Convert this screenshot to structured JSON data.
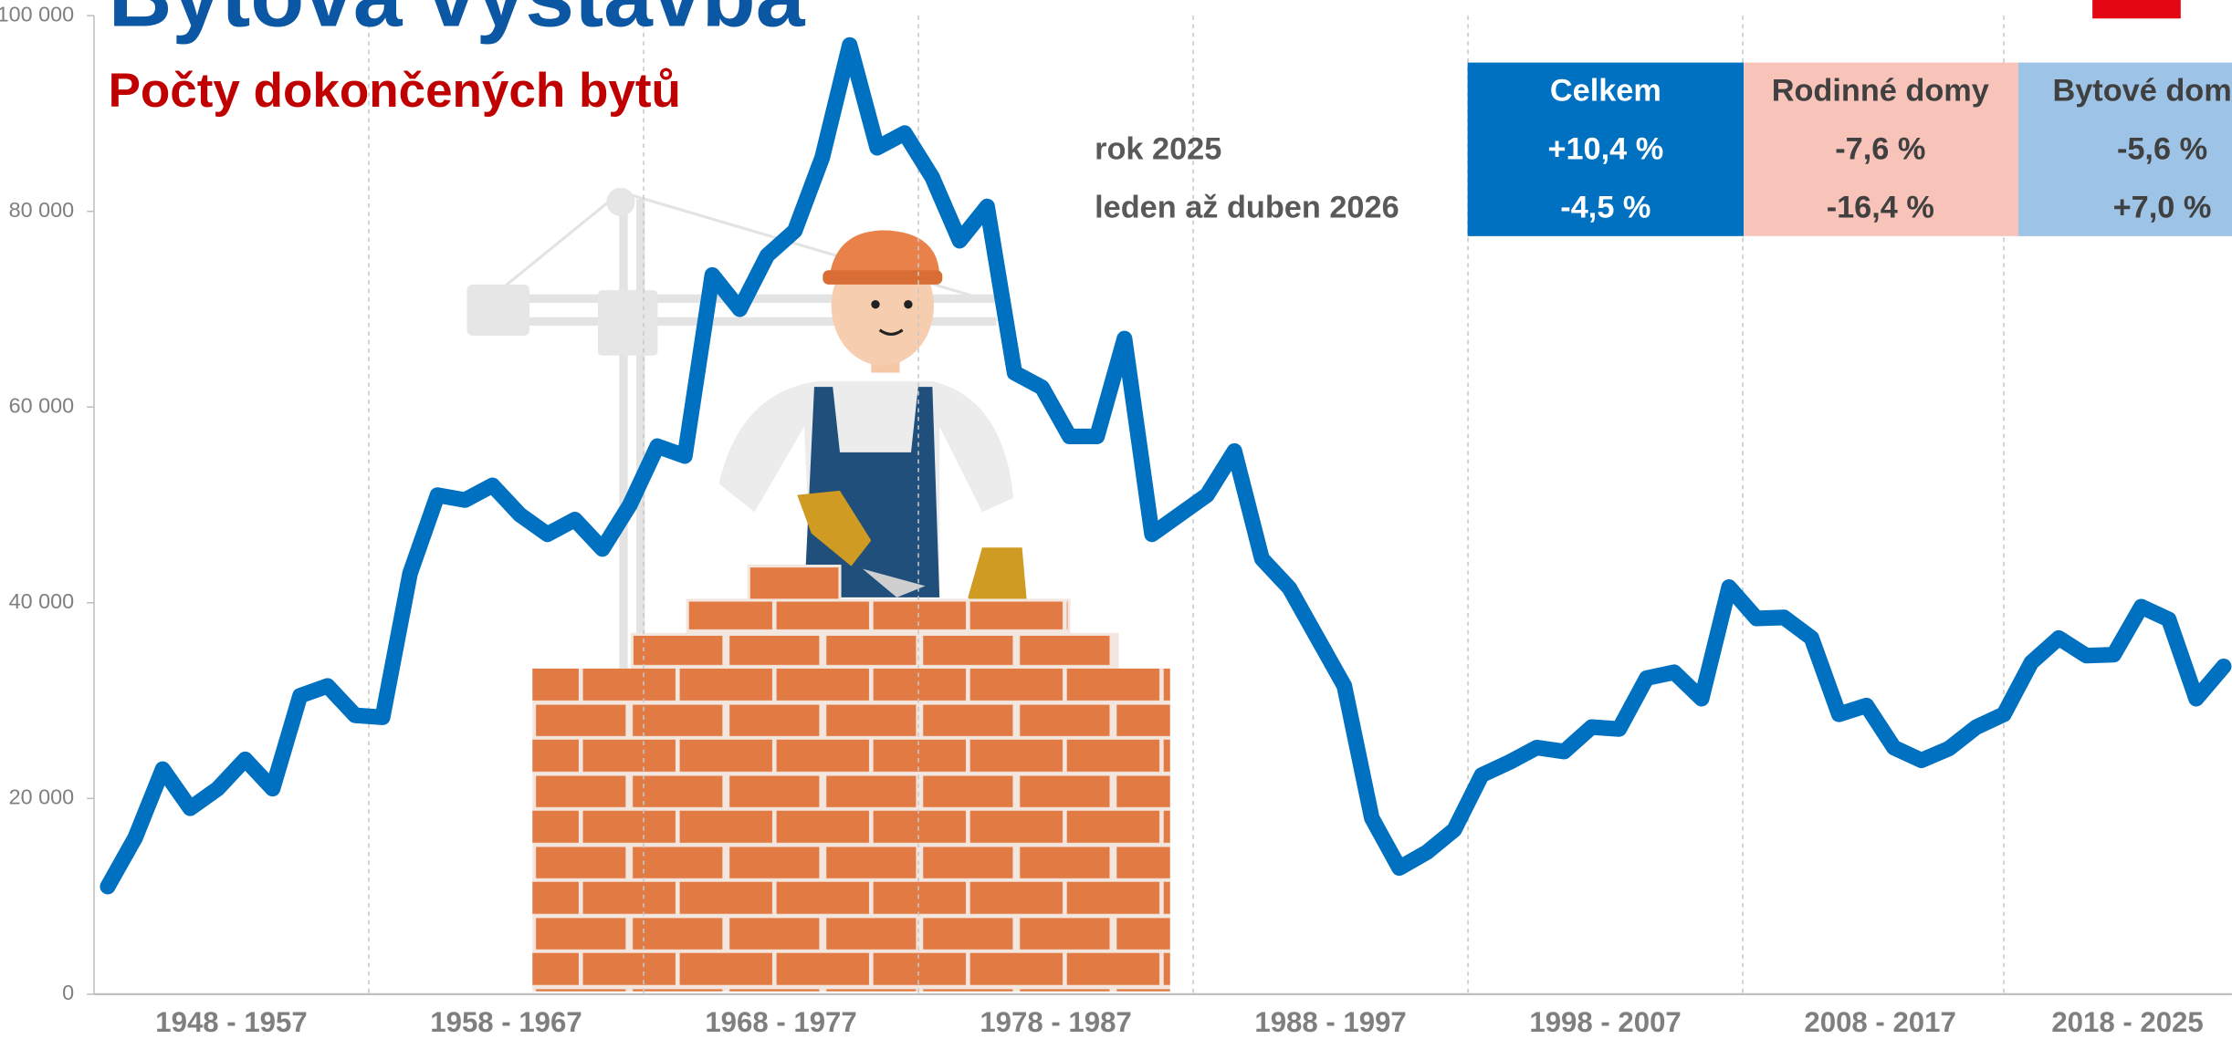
{
  "chart_data": {
    "type": "line",
    "title": "Bytová výstavba",
    "subtitle": "Počty dokončených bytů",
    "color": "#0070c0",
    "x": [
      1948,
      1949,
      1950,
      1951,
      1952,
      1953,
      1954,
      1955,
      1956,
      1957,
      1958,
      1959,
      1960,
      1961,
      1962,
      1963,
      1964,
      1965,
      1966,
      1967,
      1968,
      1969,
      1970,
      1971,
      1972,
      1973,
      1974,
      1975,
      1976,
      1977,
      1978,
      1979,
      1980,
      1981,
      1982,
      1983,
      1984,
      1985,
      1986,
      1987,
      1988,
      1989,
      1990,
      1991,
      1992,
      1993,
      1994,
      1995,
      1996,
      1997,
      1998,
      1999,
      2000,
      2001,
      2002,
      2003,
      2004,
      2005,
      2006,
      2007,
      2008,
      2009,
      2010,
      2011,
      2012,
      2013,
      2014,
      2015,
      2016,
      2017,
      2018,
      2019,
      2020,
      2021,
      2022,
      2023,
      2024,
      2025
    ],
    "values": [
      11000,
      16000,
      23000,
      19000,
      21000,
      24000,
      21000,
      30500,
      31500,
      28500,
      28300,
      43000,
      51000,
      50500,
      52000,
      49000,
      47000,
      48500,
      45500,
      50000,
      56000,
      55000,
      73500,
      70000,
      75500,
      78000,
      85500,
      97000,
      86500,
      88000,
      83500,
      77000,
      80500,
      63500,
      62000,
      57000,
      57000,
      67000,
      47000,
      49000,
      51000,
      55500,
      44500,
      41500,
      36500,
      31500,
      18000,
      12900,
      14500,
      16800,
      22400,
      23700,
      25200,
      24800,
      27300,
      27100,
      32300,
      32900,
      30200,
      41600,
      38400,
      38500,
      36400,
      28600,
      29500,
      25200,
      23900,
      25100,
      27300,
      28600,
      33900,
      36400,
      34600,
      34700,
      39600,
      38300,
      30200,
      33500
    ],
    "xlim": [
      1947.5,
      2025.3
    ],
    "xticks": [
      {
        "value": 1952.5,
        "label": "1948 - 1957"
      },
      {
        "value": 1962.5,
        "label": "1958 - 1967"
      },
      {
        "value": 1972.5,
        "label": "1968 - 1977"
      },
      {
        "value": 1982.5,
        "label": "1978 - 1987"
      },
      {
        "value": 1992.5,
        "label": "1988 - 1997"
      },
      {
        "value": 2002.5,
        "label": "1998 - 2007"
      },
      {
        "value": 2012.5,
        "label": "2008 - 2017"
      },
      {
        "value": 2021.5,
        "label": "2018 - 2025"
      }
    ],
    "ylim": [
      0,
      100000
    ],
    "yticks": [
      0,
      {
        "value": 20000,
        "label": "20 000"
      },
      {
        "value": 40000,
        "label": "40 000"
      },
      {
        "value": 60000,
        "label": "60 000"
      },
      {
        "value": 80000,
        "label": "80 000"
      },
      {
        "value": 100000,
        "label": "100 000"
      }
    ],
    "grid": true
  },
  "table": {
    "columns": [
      "Celkem",
      "Rodinné domy",
      "Bytové domy"
    ],
    "rows": [
      {
        "label": "rok 2025",
        "values": [
          "+10,4 %",
          "-7,6 %",
          "-5,6 %"
        ]
      },
      {
        "label": "leden až duben 2026",
        "values": [
          "-4,5 %",
          "-16,4 %",
          "+7,0 %"
        ]
      }
    ]
  }
}
